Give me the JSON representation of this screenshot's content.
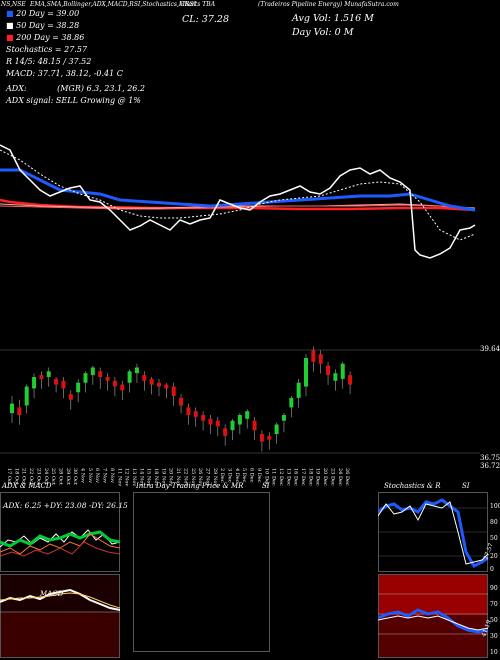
{
  "header": {
    "left_code": "NS,NSE",
    "indicator_list": "EMA,SMA,Bollinger,ADX,MACD,RSI,Stochastics,MRSI",
    "symbol_name": "Charts TBA",
    "company": "(Tradeiros Pipeline Energy) MunafaSutra.com"
  },
  "indicators": {
    "ma20": "20 Day = 39.00",
    "ma50": "50 Day = 38.28",
    "ma200": "200 Day = 38.86",
    "stochastics": "Stochastics = 27.57",
    "r": "R 14/5: 48.15 / 37.52",
    "macd": "MACD: 37.71, 38.12, -0.41 C",
    "adx_label": "ADX:",
    "adx_values": "(MGR) 6.3, 23.1, 26.2",
    "adx_signal": "ADX signal: SELL Growing @ 1%"
  },
  "price_info": {
    "close": "CL: 37.28",
    "avg_vol": "Avg Vol: 1.516  M",
    "day_vol": "Day Vol: 0  M"
  },
  "price_axis": {
    "top": "39.64",
    "bottom": "36.75",
    "bottom2": "36.72"
  },
  "dates": [
    "17 Oct",
    "18 Oct",
    "21 Oct",
    "22 Oct",
    "23 Oct",
    "24 Oct",
    "25 Oct",
    "28 Oct",
    "29 Oct",
    "30 Oct",
    "4 Nov",
    "5 Nov",
    "6 Nov",
    "7 Nov",
    "8 Nov",
    "11 Nov",
    "12 Nov",
    "13 Nov",
    "14 Nov",
    "15 Nov",
    "18 Nov",
    "19 Nov",
    "20 Nov",
    "21 Nov",
    "22 Nov",
    "25 Nov",
    "26 Nov",
    "27 Nov",
    "29 Nov",
    "2 Dec",
    "3 Dec",
    "4 Dec",
    "5 Dec",
    "6 Dec",
    "9 Dec",
    "10 Dec",
    "11 Dec",
    "12 Dec",
    "13 Dec",
    "16 Dec",
    "17 Dec",
    "18 Dec",
    "19 Dec",
    "20 Dec",
    "23 Dec",
    "24 Dec",
    "26 Dec"
  ],
  "bottom_panels": {
    "adx_title": "ADX  & MACD",
    "adx_values": "ADX: 6.25  +DY: 23.08  -DY: 26.15",
    "intraday_title": "Intra Day Trading Price  & MR",
    "intraday_si": "SI",
    "stoch_title": "Stochastics & R",
    "stoch_si": "SI",
    "macd_label": "MACD",
    "stoch_axis": [
      "100",
      "80",
      "50",
      "20",
      "0"
    ],
    "mrsi_axis": [
      "90",
      "70",
      "50",
      "30",
      "10"
    ],
    "stoch_value": "27.57",
    "mrsi_value": "41.19"
  },
  "colors": {
    "blue": "#1e5bff",
    "red": "#ff2020",
    "green": "#00cc33",
    "bull": "#22cc33",
    "bear": "#dd1111"
  }
}
